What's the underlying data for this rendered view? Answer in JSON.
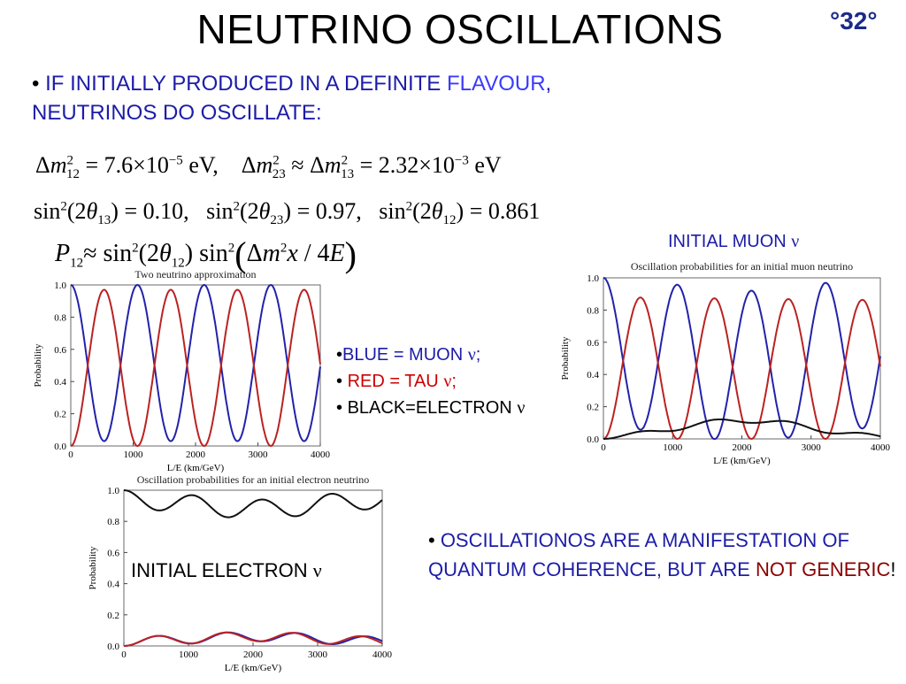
{
  "slide": {
    "title": "NEUTRINO OSCILLATIONS",
    "number": "°32°"
  },
  "bullet1": {
    "bullet": "•",
    "text_a": " IF INITIALLY PRODUCED IN A DEFINITE ",
    "text_b": "FLAVOUR",
    "text_c": ",",
    "text_d": "NEUTRINOS DO OSCILLATE:"
  },
  "equations": {
    "eq1": {
      "delta": "Δ",
      "m": "m",
      "sq": "2",
      "s12": "12",
      "v1": " = 7.6×10",
      "e1": "−5",
      "u1": " eV,",
      "approx_a": "Δ",
      "s23": "23",
      "approx": " ≈ Δ",
      "s13": "13",
      "v2": " = 2.32×10",
      "e2": "−3",
      "u2": " eV"
    },
    "eq2": {
      "sin": "sin",
      "sq": "2",
      "a1": "(2",
      "theta": "θ",
      "s13": "13",
      "v1": ") = 0.10,",
      "s23": "23",
      "v2": ") = 0.97,",
      "s12": "12",
      "v3": ") = 0.861"
    },
    "eq3": {
      "P": "P",
      "s12": "12",
      "approx": "≈ sin",
      "sq": "2",
      "a1": "(2",
      "theta": "θ",
      "s12b": "12",
      "a2": ") sin",
      "lp": "(",
      "delta": "Δ",
      "m": "m",
      "x": "x",
      "slash": " / 4",
      "E": "E",
      "rp": ")"
    }
  },
  "labels": {
    "initial_muon": "INITIAL MUON ",
    "initial_electron": "INITIAL ELECTRON ",
    "nu": "ν"
  },
  "legend": {
    "blue": "BLUE = MUON ",
    "red": "RED = TAU ",
    "black": "BLACK=ELECTRON ",
    "nu": "ν",
    "semi": ";",
    "bullet": "•"
  },
  "bullet2": {
    "bullet": "•",
    "text_a": " OSCILLATIONOS ARE A MANIFESTATION OF QUANTUM COHERENCE, BUT ARE ",
    "text_b": "NOT GENERIC",
    "text_c": "!"
  },
  "colors": {
    "muon": "#2222aa",
    "tau": "#bb2222",
    "electron": "#111111",
    "text_blue": "#1c1ca8",
    "dark_red": "#8b0000"
  },
  "chart_data": [
    {
      "type": "line",
      "title": "Two neutrino approximation",
      "xlabel": "L/E (km/GeV)",
      "ylabel": "Probability",
      "xlim": [
        0,
        4000
      ],
      "ylim": [
        0,
        1.0
      ],
      "xticks": [
        "0",
        "1000",
        "2000",
        "3000",
        "4000"
      ],
      "yticks": [
        "0.0",
        "0.2",
        "0.4",
        "0.6",
        "0.8",
        "1.0"
      ],
      "series": [
        {
          "color": "#2222aa",
          "formula": "1 - 0.97*sin^2(1.27*0.00232*x)",
          "points": 6
        },
        {
          "color": "#bb2222",
          "formula": "0.97*sin^2(1.27*0.00232*x)",
          "points": 6
        }
      ]
    },
    {
      "type": "line",
      "title": "Oscillation probabilities for an initial muon neutrino",
      "xlabel": "L/E (km/GeV)",
      "ylabel": "Probability",
      "xlim": [
        0,
        4000
      ],
      "ylim": [
        0,
        1.0
      ],
      "xticks": [
        "0",
        "1000",
        "2000",
        "3000",
        "4000"
      ],
      "yticks": [
        "0.0",
        "0.2",
        "0.4",
        "0.6",
        "0.8",
        "1.0"
      ],
      "series": [
        {
          "color": "#2222aa",
          "note": "muon survival, slowly decaying amplitude"
        },
        {
          "color": "#bb2222",
          "note": "tau appearance, peaks ~0.9"
        },
        {
          "color": "#111111",
          "note": "electron appearance, small, max ~0.13"
        }
      ]
    },
    {
      "type": "line",
      "title": "Oscillation probabilities for an initial electron neutrino",
      "xlabel": "L/E (km/GeV)",
      "ylabel": "Probability",
      "xlim": [
        0,
        4000
      ],
      "ylim": [
        0,
        1.0
      ],
      "xticks": [
        "0",
        "1000",
        "2000",
        "3000",
        "4000"
      ],
      "yticks": [
        "0.0",
        "0.2",
        "0.4",
        "0.6",
        "0.8",
        "1.0"
      ],
      "series": [
        {
          "color": "#111111",
          "note": "electron survival ~0.85–1.0"
        },
        {
          "color": "#2222aa",
          "note": "muon appearance, small"
        },
        {
          "color": "#bb2222",
          "note": "tau appearance, small"
        }
      ]
    }
  ]
}
